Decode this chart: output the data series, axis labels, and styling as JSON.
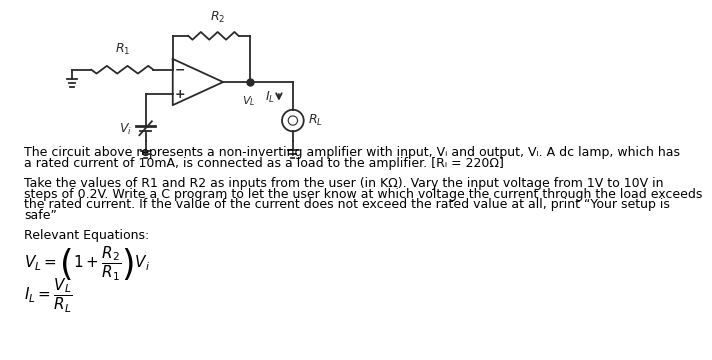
{
  "background_color": "#ffffff",
  "text_color": "#000000",
  "font_size": 9.0,
  "eq_font_size": 11,
  "circuit_color": "#2a2a2a",
  "para1_line1": "The circuit above represents a non-inverting amplifier with input, Vᵢ and output, Vₗ. A dc lamp, which has",
  "para1_line2": "a rated current of 10mA, is connected as a load to the amplifier. [Rₗ = 220Ω]",
  "para2_line1": "Take the values of R1 and R2 as inputs from the user (in KΩ). Vary the input voltage from 1V to 10V in",
  "para2_line2": "steps of 0.2V. Write a C program to let the user know at which voltage the current through the load exceeds",
  "para2_line3": "the rated current. If the value of the current does not exceed the rated value at all, print “Your setup is",
  "para2_line4": "safe”",
  "para3": "Relevant Equations:",
  "eq1": "$V_L = \\left(1 + \\dfrac{R_2}{R_1}\\right) V_i$",
  "eq2": "$I_L = \\dfrac{V_L}{R_L}$"
}
